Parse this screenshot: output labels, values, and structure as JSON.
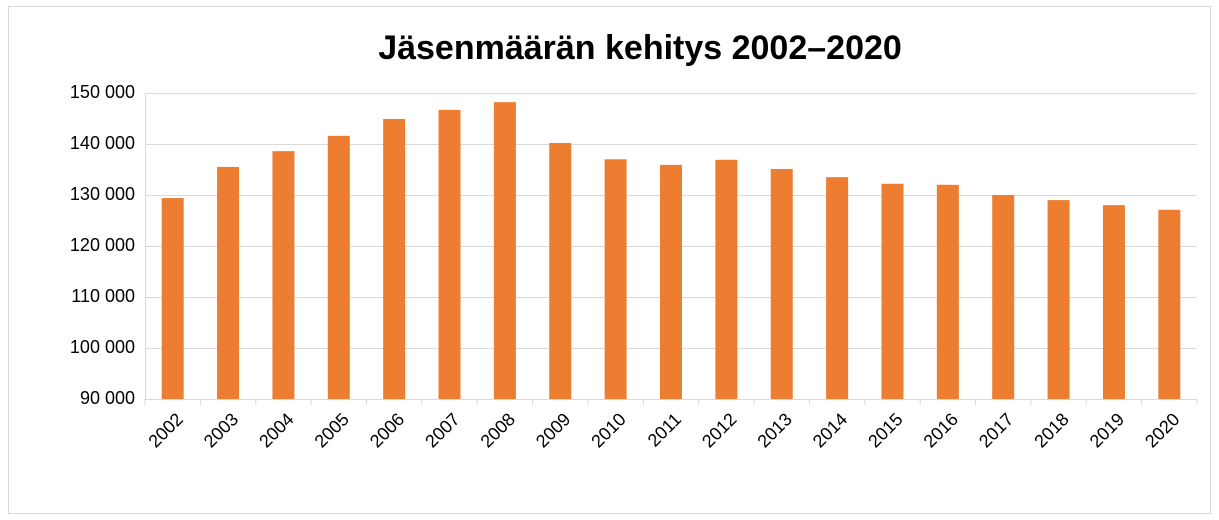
{
  "chart_data": {
    "type": "bar",
    "title": "Jäsenmäärän kehitys 2002–2020",
    "categories": [
      "2002",
      "2003",
      "2004",
      "2005",
      "2006",
      "2007",
      "2008",
      "2009",
      "2010",
      "2011",
      "2012",
      "2013",
      "2014",
      "2015",
      "2016",
      "2017",
      "2018",
      "2019",
      "2020"
    ],
    "values": [
      129400,
      135500,
      138600,
      141600,
      144900,
      146700,
      148200,
      140200,
      137000,
      135900,
      136900,
      135100,
      133500,
      132200,
      132000,
      130000,
      129000,
      128000,
      127100
    ],
    "color": "#ed7d31",
    "ylim": [
      90000,
      150000
    ],
    "yticks": [
      {
        "value": 90000,
        "label": "90 000"
      },
      {
        "value": 100000,
        "label": "100 000"
      },
      {
        "value": 110000,
        "label": "110 000"
      },
      {
        "value": 120000,
        "label": "120 000"
      },
      {
        "value": 130000,
        "label": "130 000"
      },
      {
        "value": 140000,
        "label": "140 000"
      },
      {
        "value": 150000,
        "label": "150 000"
      }
    ],
    "grid": true
  }
}
